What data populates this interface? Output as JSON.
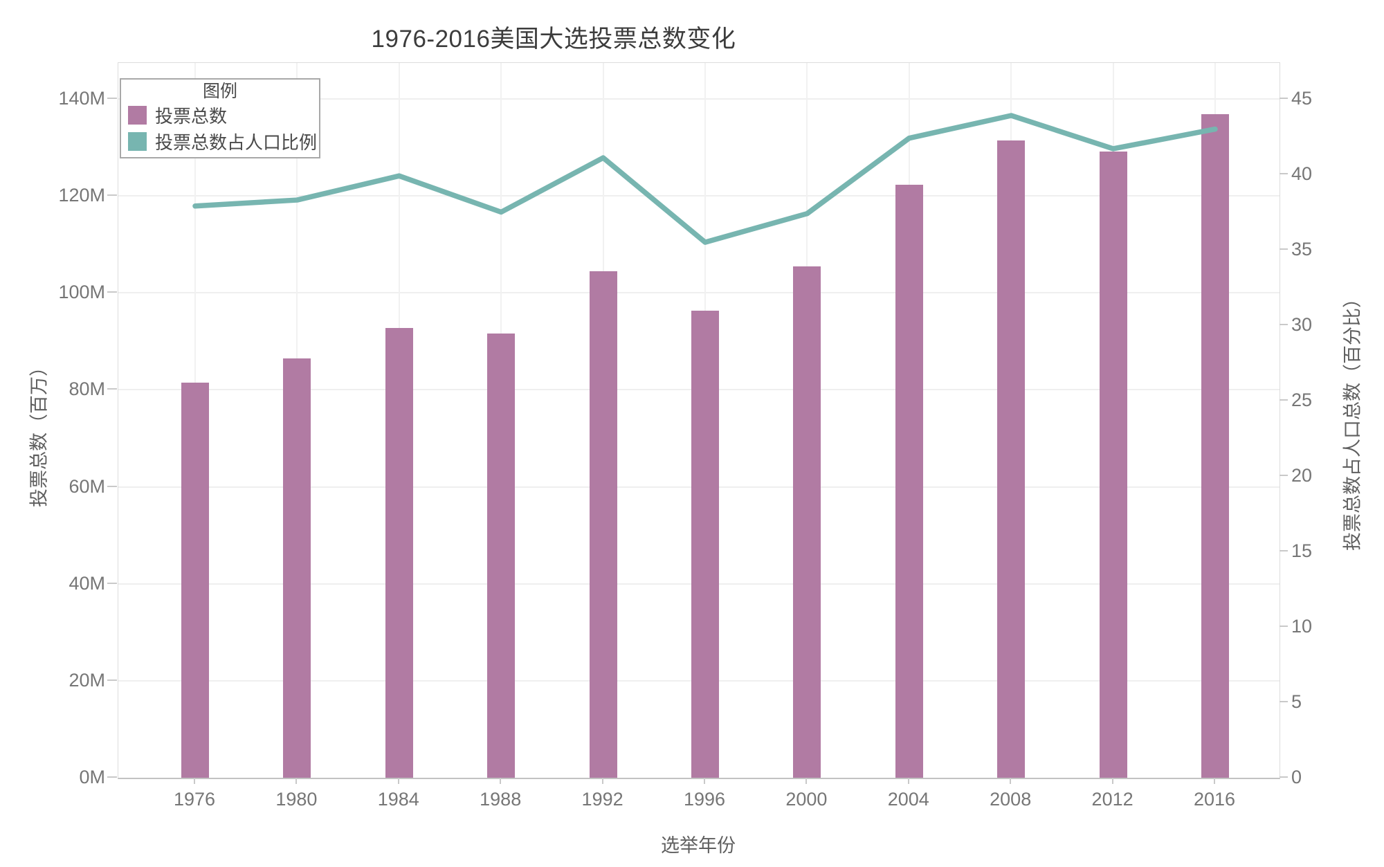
{
  "title": "1976-2016美国大选投票总数变化",
  "legend": {
    "title": "图例",
    "items": [
      {
        "label": "投票总数",
        "color": "#b17ba3"
      },
      {
        "label": "投票总数占人口比例",
        "color": "#77b5b0"
      }
    ]
  },
  "colors": {
    "bar": "#b17ba3",
    "line": "#77b5b0",
    "grid": "#efefef",
    "axis_spine": "#c2c2c2",
    "tick_text": "#767676",
    "title_text": "#3c3c3c"
  },
  "chart_data": {
    "type": "bar+line",
    "title": "1976-2016美国大选投票总数变化",
    "xlabel": "选举年份",
    "ylabel_left": "投票总数（百万）",
    "ylabel_right": "投票总数占人口总数（百分比）",
    "legend_title": "图例",
    "legend_position": "top-left",
    "grid": true,
    "categories": [
      "1976",
      "1980",
      "1984",
      "1988",
      "1992",
      "1996",
      "2000",
      "2004",
      "2008",
      "2012",
      "2016"
    ],
    "series": [
      {
        "name": "投票总数",
        "type": "bar",
        "yaxis": "left",
        "unit": "百万",
        "color": "#b17ba3",
        "values": [
          81.5,
          86.5,
          92.7,
          91.6,
          104.4,
          96.3,
          105.5,
          122.3,
          131.4,
          129.1,
          136.8
        ]
      },
      {
        "name": "投票总数占人口比例",
        "type": "line",
        "yaxis": "right",
        "unit": "%",
        "color": "#77b5b0",
        "values": [
          37.9,
          38.3,
          39.9,
          37.5,
          41.1,
          35.5,
          37.4,
          42.4,
          43.9,
          41.7,
          43.0
        ]
      }
    ],
    "ylim_left": [
      0,
      147.4
    ],
    "ylim_right": [
      0,
      47.4
    ],
    "yticks_left": [
      0,
      20,
      40,
      60,
      80,
      100,
      120,
      140
    ],
    "yticks_left_labels": [
      "0M",
      "20M",
      "40M",
      "60M",
      "80M",
      "100M",
      "120M",
      "140M"
    ],
    "yticks_right": [
      0,
      5,
      10,
      15,
      20,
      25,
      30,
      35,
      40,
      45
    ]
  }
}
